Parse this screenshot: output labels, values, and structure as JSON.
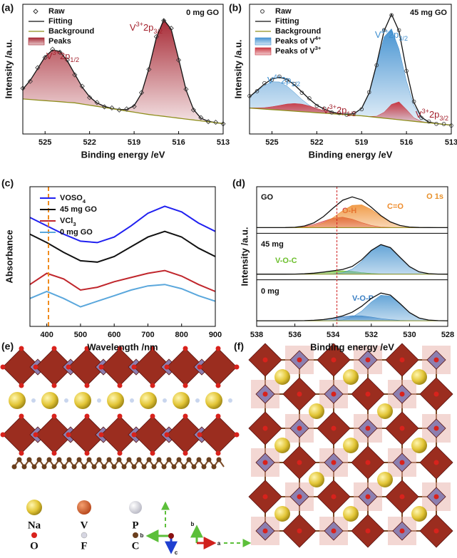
{
  "chart_data": [
    {
      "type": "line",
      "panel": "(a)",
      "title": "0 mg GO",
      "xlabel": "Binding energy /eV",
      "ylabel": "Intensity /a.u.",
      "xlim": [
        526.5,
        513
      ],
      "xticks": [
        525,
        522,
        519,
        516,
        513
      ],
      "ylim": [
        0,
        100
      ],
      "x": [
        526.5,
        526,
        525.5,
        525,
        524.5,
        524,
        523.5,
        523,
        522.5,
        522,
        521.5,
        521,
        520.5,
        520,
        519.5,
        519,
        518.5,
        518,
        517.5,
        517,
        516.5,
        516,
        515.5,
        515,
        514.5,
        514,
        513.5,
        513
      ],
      "series": [
        {
          "name": "Raw",
          "color": "#333333",
          "marker": "diamond",
          "values": [
            35.2,
            40.6,
            51.1,
            59.0,
            65.3,
            63.0,
            57.1,
            45.6,
            36.8,
            28.1,
            24.3,
            20.9,
            20.1,
            18.5,
            19.3,
            21.2,
            31.9,
            49.8,
            75.0,
            87.4,
            81.5,
            57.0,
            34.5,
            18.5,
            12.6,
            9.5,
            9.0,
            7.8
          ]
        },
        {
          "name": "Fitting",
          "color": "#111111",
          "values": [
            34.5,
            41.3,
            50.4,
            59.5,
            64.7,
            63.7,
            56.4,
            46.2,
            36.1,
            28.6,
            23.9,
            21.3,
            19.7,
            18.8,
            18.9,
            21.7,
            31.3,
            50.5,
            74.3,
            88.1,
            80.8,
            57.7,
            33.9,
            18.9,
            12.2,
            9.8,
            8.7,
            8
          ]
        },
        {
          "name": "Background",
          "color": "#8f8f1e",
          "baseline": true,
          "values": [
            27,
            26.6,
            26.1,
            25.7,
            25.3,
            24.9,
            24.4,
            24,
            23.1,
            22.2,
            21.3,
            20.4,
            19.5,
            18.6,
            17.7,
            16.8,
            15.9,
            15,
            14.3,
            13.6,
            12.9,
            12.2,
            11.5,
            10.8,
            10.1,
            9.4,
            8.7,
            8
          ]
        },
        {
          "name": "Peaks",
          "color": "#a3202c",
          "fill": "area",
          "values": [
            7.5,
            14.7,
            24.3,
            33.8,
            39.4,
            38.8,
            32,
            22.2,
            13,
            6.4,
            2.6,
            0.9,
            0.2,
            0.2,
            1.2,
            4.9,
            15.4,
            35.5,
            60,
            74.5,
            67.9,
            45.5,
            22.4,
            8.1,
            2.1,
            0.4,
            0,
            0
          ]
        }
      ],
      "annotations": [
        {
          "parts": [
            "V",
            "3+",
            "2p",
            "1/2"
          ],
          "color": "#a3202c"
        },
        {
          "parts": [
            "V",
            "3+",
            "2p",
            "3/2"
          ],
          "color": "#a3202c"
        }
      ]
    },
    {
      "type": "line",
      "panel": "(b)",
      "title": "45 mg GO",
      "xlabel": "Binding energy /eV",
      "ylabel": "Intensity /a.u.",
      "xlim": [
        526.5,
        513
      ],
      "xticks": [
        525,
        522,
        519,
        516,
        513
      ],
      "ylim": [
        0,
        100
      ],
      "x": [
        526.5,
        526,
        525.5,
        525,
        524.5,
        524,
        523.5,
        523,
        522.5,
        522,
        521.5,
        521,
        520.5,
        520,
        519.5,
        519,
        518.5,
        518,
        517.5,
        517,
        516.5,
        516,
        515.5,
        515,
        514.5,
        514,
        513.5,
        513
      ],
      "series": [
        {
          "name": "Raw",
          "color": "#333333",
          "marker": "circle",
          "values": [
            29.3,
            33.0,
            39.2,
            41.8,
            44.3,
            41.5,
            38.6,
            31.8,
            27.5,
            21.7,
            19.6,
            16.6,
            16.1,
            14.8,
            16.2,
            19.1,
            32.2,
            53.0,
            80.1,
            91.6,
            80.0,
            48.6,
            25.0,
            12.4,
            9.6,
            7.8,
            7.7,
            6.5
          ]
        },
        {
          "name": "Fitting",
          "color": "#111111",
          "values": [
            28.6,
            33.5,
            38.5,
            42.4,
            43.7,
            42.1,
            37.9,
            32.4,
            26.9,
            22.2,
            19.1,
            17,
            15.7,
            15.1,
            15.7,
            19.7,
            31.5,
            53.7,
            79.4,
            92.3,
            79.4,
            49.2,
            24.3,
            12.9,
            9.2,
            8.1,
            7.4,
            6.8
          ]
        },
        {
          "name": "Background",
          "color": "#8f8f1e",
          "baseline": true,
          "values": [
            20,
            19.6,
            19.2,
            18.8,
            18.4,
            18,
            17.6,
            17.2,
            16.8,
            16.4,
            16,
            15.6,
            15.2,
            14.8,
            14.4,
            14,
            13.4,
            12.8,
            12.2,
            11.6,
            11,
            10.4,
            9.8,
            9.2,
            8.6,
            8,
            7.4,
            6.8
          ]
        },
        {
          "name": [
            "Peaks of V",
            "4+"
          ],
          "color": "#3f8fd0",
          "fill": "area",
          "values": [
            8.4,
            13.4,
            18.2,
            21.4,
            21.7,
            19,
            14.4,
            9.4,
            5.3,
            2.5,
            1.1,
            0.4,
            0.1,
            0.2,
            1.3,
            5.7,
            18,
            40,
            62.7,
            69.5,
            54.6,
            30.3,
            11.9,
            3.3,
            0.6,
            0.1,
            0,
            0
          ]
        },
        {
          "name": [
            "Peaks of V",
            "3+"
          ],
          "color": "#c9303a",
          "fill": "area",
          "values": [
            0.2,
            0.5,
            1.1,
            2.2,
            3.6,
            5.1,
            5.9,
            5.8,
            4.8,
            3.3,
            2,
            1,
            0.4,
            0.1,
            0,
            0,
            0.1,
            0.9,
            4.5,
            11.2,
            13.8,
            8.5,
            2.6,
            0.4,
            0,
            0,
            0,
            0
          ]
        }
      ],
      "annotations": [
        {
          "parts": [
            "V",
            "4+",
            "2p",
            "1/2"
          ],
          "color": "#3f8fd0"
        },
        {
          "parts": [
            "V",
            "3+",
            "2p",
            "1/2"
          ],
          "color": "#a3202c"
        },
        {
          "parts": [
            "V",
            "4+",
            "2p",
            "3/2"
          ],
          "color": "#3f8fd0"
        },
        {
          "parts": [
            "V",
            "3+",
            "2p",
            "3/2"
          ],
          "color": "#a3202c"
        }
      ]
    },
    {
      "type": "line",
      "panel": "(c)",
      "xlabel": "Wavelength /nm",
      "ylabel": "Absorbance",
      "xlim": [
        350,
        900
      ],
      "xticks": [
        400,
        500,
        600,
        700,
        800,
        900
      ],
      "ylim": [
        0,
        100
      ],
      "x": [
        350,
        400,
        450,
        500,
        550,
        600,
        650,
        700,
        750,
        800,
        850,
        900
      ],
      "reference_line": {
        "value": 405,
        "color": "#f08c1e"
      },
      "series": [
        {
          "name": [
            "VOSO",
            "4"
          ],
          "color": "#2020f0",
          "values": [
            78,
            72,
            66,
            61,
            60,
            64,
            72,
            81,
            86,
            82,
            74,
            68
          ]
        },
        {
          "name": "45 mg GO",
          "color": "#111111",
          "values": [
            66,
            60,
            53,
            47,
            46,
            50,
            57,
            64,
            68,
            64,
            56,
            50
          ]
        },
        {
          "name": [
            "VCl",
            "3"
          ],
          "color": "#c0262c",
          "values": [
            30,
            38,
            34,
            26,
            28,
            32,
            35,
            38,
            40,
            36,
            30,
            25
          ]
        },
        {
          "name": "0 mg GO",
          "color": "#5aa7dc",
          "values": [
            20,
            25,
            20,
            14,
            18,
            22,
            26,
            29,
            30,
            27,
            22,
            18
          ]
        }
      ]
    },
    {
      "type": "line",
      "panel": "(d)",
      "title": "O 1s",
      "title_color": "#e8902a",
      "xlabel": "Binding energy /eV",
      "ylabel": "Intensity /a.u.",
      "xlim": [
        538,
        528
      ],
      "xticks": [
        538,
        536,
        534,
        532,
        530,
        528
      ],
      "x": [
        538,
        537.5,
        537,
        536.5,
        536,
        535.5,
        535,
        534.5,
        534,
        533.5,
        533,
        532.5,
        532,
        531.5,
        531,
        530.5,
        530,
        529.5,
        529,
        528.5,
        528
      ],
      "reference_line": {
        "value": 533.8,
        "color": "#d02020"
      },
      "stacks": [
        {
          "name": "GO",
          "ylim": [
            0,
            100
          ],
          "background": 10,
          "fit": [
            10,
            10,
            10,
            10.1,
            10.9,
            13.8,
            21.4,
            36.1,
            56.2,
            74.8,
            82.6,
            75.7,
            58.1,
            38.4,
            23.4,
            15,
            11.4,
            10.3,
            10.1,
            10,
            10
          ],
          "components": [
            {
              "label": "O-H",
              "color": "#d23a3a",
              "values": [
                0,
                0,
                0,
                0.1,
                0.7,
                2.7,
                7.5,
                15.2,
                22.6,
                24.8,
                20,
                11.8,
                5.1,
                1.6,
                0.4,
                0.1,
                0,
                0,
                0,
                0,
                0
              ]
            },
            {
              "label": "C=O",
              "color": "#ee8c2c",
              "values": [
                0,
                0,
                0,
                0,
                0.2,
                1.1,
                3.9,
                10.9,
                23.6,
                40,
                52.6,
                53.9,
                43,
                26.8,
                13,
                4.9,
                1.4,
                0.3,
                0.1,
                0,
                0
              ]
            }
          ]
        },
        {
          "name": "45 mg",
          "ylim": [
            0,
            100
          ],
          "background": 10,
          "fit": [
            10,
            10,
            10,
            10,
            10.2,
            10.9,
            12.4,
            15,
            17.9,
            21.2,
            28.3,
            44.1,
            66.2,
            80,
            72.8,
            50,
            28,
            15.7,
            11.3,
            10.2,
            10
          ],
          "components": [
            {
              "label": "V-O-C",
              "color": "#6cbf2c",
              "values": [
                0,
                0,
                0,
                0,
                0.2,
                0.9,
                2.4,
                4.9,
                7.2,
                7.9,
                6.4,
                3.8,
                1.6,
                0.5,
                0.1,
                0,
                0,
                0,
                0,
                0,
                0
              ]
            },
            {
              "color": "#4a95d0",
              "values": [
                0,
                0,
                0,
                0,
                0,
                0,
                0,
                0.1,
                0.7,
                3.3,
                11.9,
                30.3,
                54.6,
                69.5,
                62.7,
                40,
                18,
                5.7,
                1.3,
                0.2,
                0
              ]
            }
          ]
        },
        {
          "name": "0 mg",
          "ylim": [
            0,
            100
          ],
          "background": 10,
          "fit": [
            10,
            10,
            10,
            10,
            10.1,
            10.3,
            11.1,
            12.8,
            16.2,
            21.6,
            30.2,
            44.4,
            62.9,
            75.5,
            70.7,
            50.7,
            29.4,
            16.6,
            11.6,
            10.3,
            10
          ],
          "components": [
            {
              "label": "V-O-P",
              "color": "#3a7fc4",
              "values": [
                0,
                0,
                0,
                0,
                0.1,
                0.3,
                1.1,
                2.8,
                5.8,
                9.4,
                11.8,
                11.5,
                8.7,
                5.2,
                2.4,
                0.9,
                0.2,
                0,
                0,
                0,
                0
              ]
            },
            {
              "color": "#4a95d0",
              "values": [
                0,
                0,
                0,
                0,
                0,
                0,
                0,
                0,
                0.4,
                2.2,
                8.4,
                22.9,
                44.2,
                60.3,
                58.3,
                39.8,
                19.2,
                6.6,
                1.6,
                0.3,
                0
              ]
            }
          ]
        }
      ]
    }
  ],
  "structures": {
    "e": {
      "label": "(e)",
      "legend": [
        "Na",
        "V",
        "P",
        "O",
        "F",
        "C"
      ],
      "axes": [
        "b",
        "c"
      ]
    },
    "f": {
      "label": "(f)",
      "axes": [
        "b",
        "a"
      ]
    }
  }
}
